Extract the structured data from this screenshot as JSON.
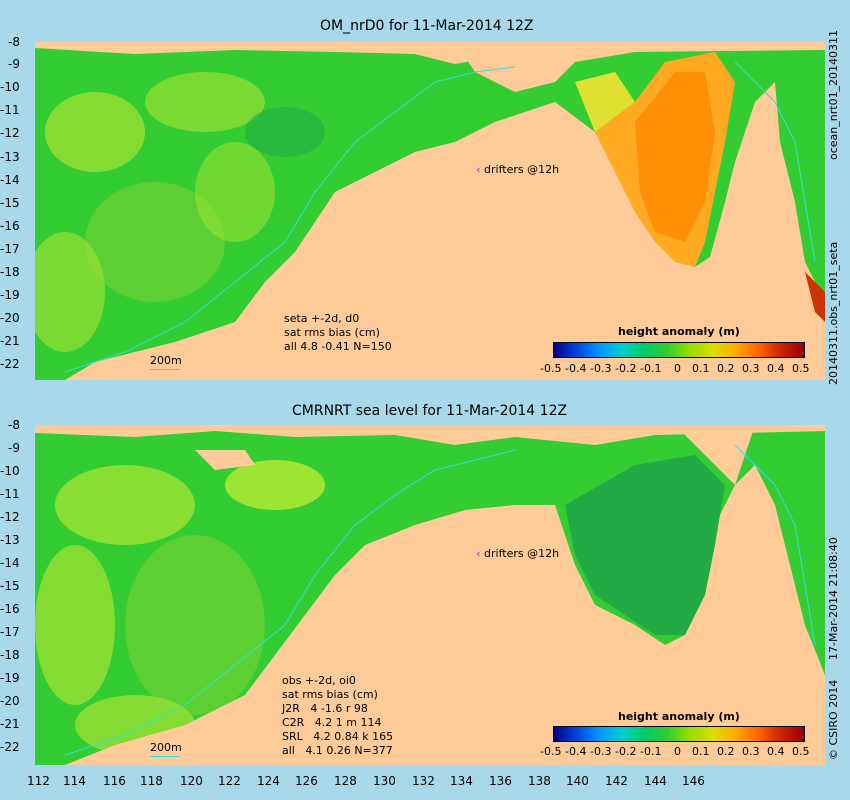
{
  "panels": [
    {
      "title": "OM_nrD0 for 11-Mar-2014 12Z",
      "right_label": "ocean_nrt01_20140311",
      "right_label2": "20140311.obs_nrt01_seta",
      "notes": [
        "seta +-2d, d0",
        "sat rms bias (cm)",
        "all 4.8 -0.41 N=150"
      ],
      "drifters": "drifters @12h",
      "scale": "200m",
      "colorbar_title": "height anomaly (m)"
    },
    {
      "title": "CMRNRT sea level  for 11-Mar-2014 12Z",
      "right_label": "17-Mar-2014 21:08:40",
      "right_label2": "© CSIRO 2014",
      "notes": [
        "obs +-2d, oi0",
        "sat rms bias (cm)",
        "J2R   4 -1.6 r 98",
        "C2R   4.2 1 m 114",
        "SRL   4.2 0.84 k 165",
        "all   4.1 0.26 N=377"
      ],
      "drifters": "drifters @12h",
      "scale": "200m",
      "colorbar_title": "height anomaly (m)"
    }
  ],
  "lat_ticks": [
    "-8",
    "-9",
    "-10",
    "-11",
    "-12",
    "-13",
    "-14",
    "-15",
    "-16",
    "-17",
    "-18",
    "-19",
    "-20",
    "-21",
    "-22"
  ],
  "lon_ticks": [
    "112",
    "114",
    "116",
    "118",
    "120",
    "122",
    "124",
    "126",
    "128",
    "130",
    "132",
    "134",
    "136",
    "138",
    "140",
    "142",
    "144",
    "146"
  ],
  "colorbar_labels": [
    "-0.5",
    "-0.4",
    "-0.3",
    "-0.2",
    "-0.1",
    "0",
    "0.1",
    "0.2",
    "0.3",
    "0.4",
    "0.5"
  ],
  "colors": {
    "background": "#a7d9ea",
    "land": "#ffcc99",
    "ocean_green": "#33cc33",
    "drifter": "#d73bd7"
  }
}
